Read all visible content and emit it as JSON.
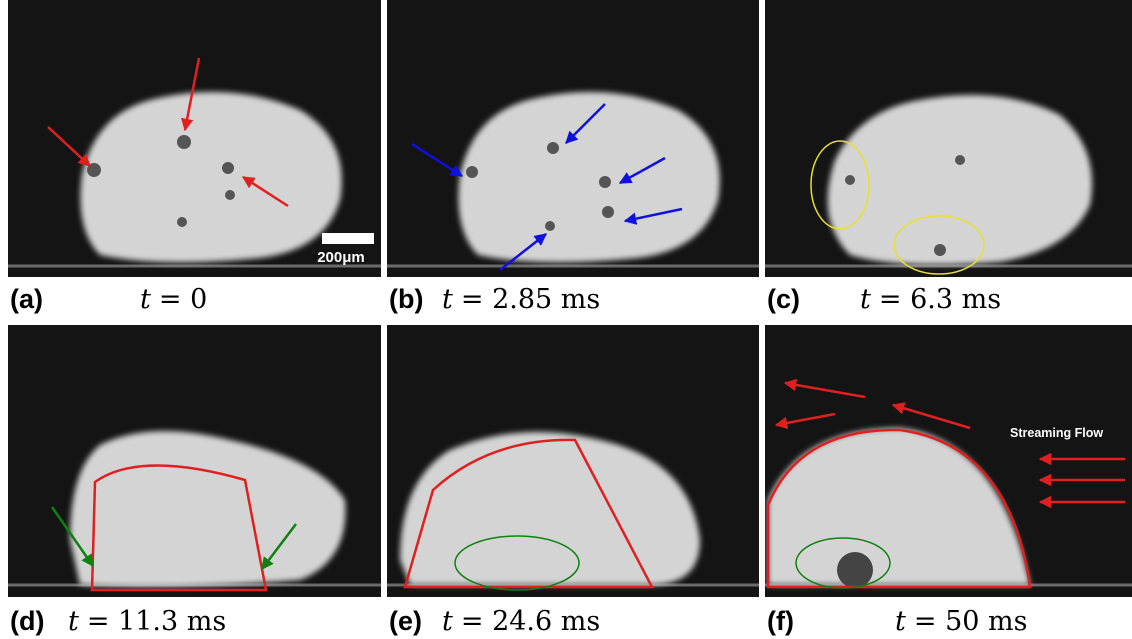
{
  "panels": [
    {
      "label": "(a)",
      "variable": "t",
      "time": "= 0"
    },
    {
      "label": "(b)",
      "variable": "t",
      "time": "= 2.85 ms"
    },
    {
      "label": "(c)",
      "variable": "t",
      "time": "= 6.3 ms"
    },
    {
      "label": "(d)",
      "variable": "t",
      "time": "= 11.3 ms"
    },
    {
      "label": "(e)",
      "variable": "t",
      "time": "= 24.6 ms"
    },
    {
      "label": "(f)",
      "variable": "t",
      "time": "= 50 ms"
    }
  ],
  "scale_bar": "200μm",
  "annotation": "Streaming Flow"
}
